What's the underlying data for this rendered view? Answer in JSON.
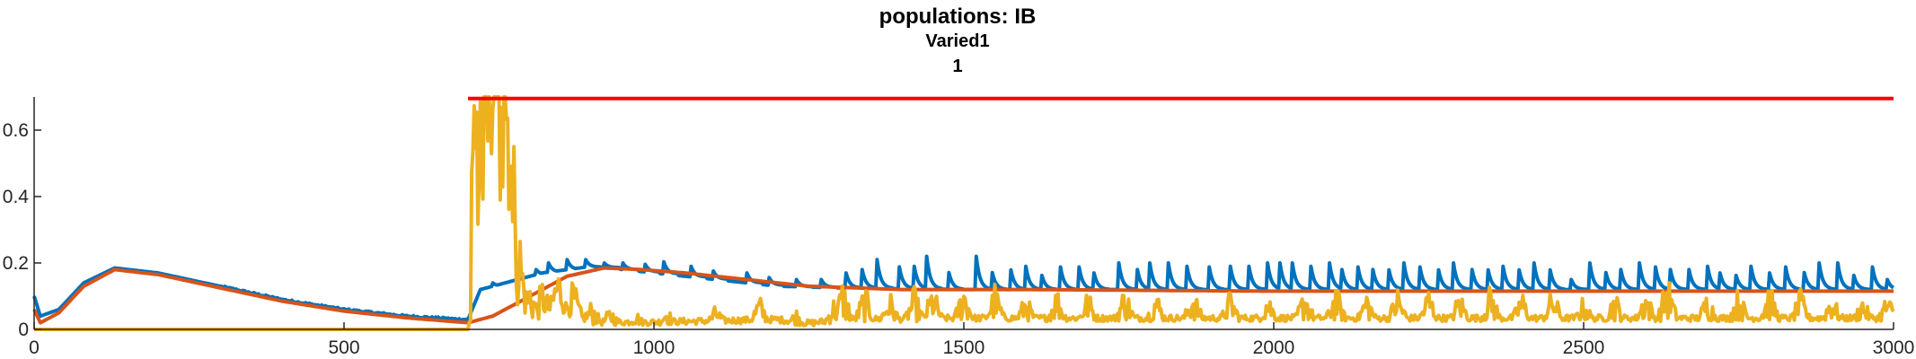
{
  "chart_data": {
    "type": "line",
    "title_lines": [
      "populations: IB",
      "Varied1",
      "1"
    ],
    "xlabel": "",
    "ylabel": "",
    "xlim": [
      0,
      3000
    ],
    "ylim": [
      0,
      0.7
    ],
    "x_ticks": [
      0,
      500,
      1000,
      1500,
      2000,
      2500,
      3000
    ],
    "x_tick_labels": [
      "0",
      "500",
      "1000",
      "1500",
      "2000",
      "2500",
      "3000"
    ],
    "y_ticks": [
      0,
      0.2,
      0.4,
      0.6
    ],
    "y_tick_labels": [
      "0",
      "0.2",
      "0.4",
      "0.6"
    ],
    "grid": false,
    "legend": "none",
    "series": [
      {
        "color": "#0072BD",
        "style": "spiky",
        "points": [
          [
            0,
            0.1
          ],
          [
            10,
            0.04
          ],
          [
            40,
            0.06
          ],
          [
            80,
            0.14
          ],
          [
            130,
            0.185
          ],
          [
            200,
            0.17
          ],
          [
            300,
            0.13
          ],
          [
            400,
            0.09
          ],
          [
            500,
            0.06
          ],
          [
            600,
            0.04
          ],
          [
            690,
            0.03
          ],
          [
            700,
            0.03
          ],
          [
            720,
            0.12
          ],
          [
            760,
            0.14
          ],
          [
            820,
            0.17
          ],
          [
            900,
            0.19
          ],
          [
            1000,
            0.17
          ],
          [
            1100,
            0.15
          ],
          [
            1200,
            0.13
          ],
          [
            1300,
            0.125
          ],
          [
            1500,
            0.12
          ],
          [
            2000,
            0.12
          ],
          [
            2500,
            0.12
          ],
          [
            3000,
            0.12
          ]
        ],
        "spikes": [
          [
            740,
            0.14
          ],
          [
            780,
            0.14
          ],
          [
            810,
            0.18
          ],
          [
            830,
            0.2
          ],
          [
            860,
            0.21
          ],
          [
            890,
            0.21
          ],
          [
            920,
            0.2
          ],
          [
            950,
            0.2
          ],
          [
            985,
            0.2
          ],
          [
            1015,
            0.21
          ],
          [
            1060,
            0.19
          ],
          [
            1095,
            0.18
          ],
          [
            1150,
            0.17
          ],
          [
            1185,
            0.16
          ],
          [
            1230,
            0.15
          ],
          [
            1270,
            0.15
          ],
          [
            1310,
            0.17
          ],
          [
            1335,
            0.19
          ],
          [
            1360,
            0.21
          ],
          [
            1395,
            0.2
          ],
          [
            1420,
            0.19
          ],
          [
            1440,
            0.22
          ],
          [
            1475,
            0.18
          ],
          [
            1520,
            0.22
          ],
          [
            1545,
            0.18
          ],
          [
            1575,
            0.19
          ],
          [
            1600,
            0.19
          ],
          [
            1625,
            0.17
          ],
          [
            1655,
            0.2
          ],
          [
            1685,
            0.2
          ],
          [
            1710,
            0.17
          ],
          [
            1750,
            0.2
          ],
          [
            1780,
            0.18
          ],
          [
            1800,
            0.2
          ],
          [
            1830,
            0.2
          ],
          [
            1860,
            0.19
          ],
          [
            1895,
            0.2
          ],
          [
            1930,
            0.19
          ],
          [
            1960,
            0.19
          ],
          [
            1990,
            0.2
          ],
          [
            2010,
            0.2
          ],
          [
            2030,
            0.2
          ],
          [
            2060,
            0.19
          ],
          [
            2090,
            0.2
          ],
          [
            2110,
            0.18
          ],
          [
            2135,
            0.2
          ],
          [
            2160,
            0.18
          ],
          [
            2185,
            0.19
          ],
          [
            2210,
            0.2
          ],
          [
            2235,
            0.2
          ],
          [
            2265,
            0.19
          ],
          [
            2290,
            0.2
          ],
          [
            2320,
            0.18
          ],
          [
            2345,
            0.19
          ],
          [
            2370,
            0.19
          ],
          [
            2395,
            0.19
          ],
          [
            2420,
            0.2
          ],
          [
            2445,
            0.19
          ],
          [
            2480,
            0.15
          ],
          [
            2510,
            0.2
          ],
          [
            2535,
            0.18
          ],
          [
            2560,
            0.18
          ],
          [
            2590,
            0.2
          ],
          [
            2615,
            0.2
          ],
          [
            2640,
            0.18
          ],
          [
            2670,
            0.18
          ],
          [
            2700,
            0.19
          ],
          [
            2720,
            0.17
          ],
          [
            2745,
            0.17
          ],
          [
            2770,
            0.19
          ],
          [
            2800,
            0.17
          ],
          [
            2825,
            0.2
          ],
          [
            2855,
            0.18
          ],
          [
            2880,
            0.2
          ],
          [
            2910,
            0.2
          ],
          [
            2935,
            0.17
          ],
          [
            2965,
            0.2
          ],
          [
            2990,
            0.15
          ]
        ]
      },
      {
        "color": "#D95319",
        "style": "smooth",
        "points": [
          [
            0,
            0.06
          ],
          [
            10,
            0.02
          ],
          [
            40,
            0.05
          ],
          [
            80,
            0.13
          ],
          [
            130,
            0.18
          ],
          [
            200,
            0.165
          ],
          [
            300,
            0.125
          ],
          [
            400,
            0.085
          ],
          [
            500,
            0.055
          ],
          [
            600,
            0.035
          ],
          [
            700,
            0.02
          ],
          [
            740,
            0.04
          ],
          [
            800,
            0.1
          ],
          [
            860,
            0.16
          ],
          [
            920,
            0.185
          ],
          [
            980,
            0.18
          ],
          [
            1050,
            0.17
          ],
          [
            1150,
            0.15
          ],
          [
            1250,
            0.13
          ],
          [
            1400,
            0.12
          ],
          [
            1600,
            0.12
          ],
          [
            2000,
            0.115
          ],
          [
            2400,
            0.115
          ],
          [
            2700,
            0.115
          ],
          [
            3000,
            0.115
          ]
        ]
      },
      {
        "color": "#EDB120",
        "style": "noisy",
        "points": [
          [
            0,
            0
          ],
          [
            700,
            0
          ],
          [
            705,
            0.05
          ],
          [
            715,
            0.45
          ],
          [
            730,
            0.6
          ],
          [
            745,
            0.7
          ],
          [
            760,
            0.6
          ],
          [
            770,
            0.35
          ],
          [
            780,
            0.15
          ],
          [
            800,
            0.05
          ],
          [
            850,
            0.12
          ],
          [
            900,
            0.03
          ],
          [
            1000,
            0.03
          ],
          [
            1200,
            0.05
          ],
          [
            1250,
            0.02
          ],
          [
            1300,
            0.05
          ],
          [
            1500,
            0.06
          ],
          [
            2000,
            0.06
          ],
          [
            2500,
            0.06
          ],
          [
            3000,
            0.06
          ]
        ],
        "bursts": [
          [
            730,
            0.7
          ],
          [
            745,
            0.7
          ],
          [
            760,
            0.68
          ],
          [
            780,
            0.35
          ],
          [
            800,
            0.15
          ],
          [
            820,
            0.13
          ],
          [
            845,
            0.16
          ],
          [
            870,
            0.12
          ],
          [
            900,
            0.08
          ],
          [
            930,
            0.06
          ],
          [
            970,
            0.05
          ],
          [
            1020,
            0.06
          ],
          [
            1100,
            0.06
          ],
          [
            1170,
            0.09
          ],
          [
            1230,
            0.05
          ],
          [
            1290,
            0.08
          ],
          [
            1305,
            0.14
          ],
          [
            1340,
            0.12
          ],
          [
            1380,
            0.1
          ],
          [
            1420,
            0.11
          ],
          [
            1450,
            0.12
          ],
          [
            1500,
            0.13
          ],
          [
            1550,
            0.12
          ],
          [
            1600,
            0.09
          ],
          [
            1650,
            0.11
          ],
          [
            1700,
            0.1
          ],
          [
            1760,
            0.12
          ],
          [
            1810,
            0.1
          ],
          [
            1870,
            0.11
          ],
          [
            1930,
            0.1
          ],
          [
            1990,
            0.1
          ],
          [
            2050,
            0.11
          ],
          [
            2100,
            0.12
          ],
          [
            2150,
            0.1
          ],
          [
            2200,
            0.11
          ],
          [
            2250,
            0.11
          ],
          [
            2300,
            0.1
          ],
          [
            2350,
            0.12
          ],
          [
            2400,
            0.1
          ],
          [
            2450,
            0.11
          ],
          [
            2500,
            0.08
          ],
          [
            2550,
            0.1
          ],
          [
            2600,
            0.11
          ],
          [
            2635,
            0.15
          ],
          [
            2700,
            0.1
          ],
          [
            2750,
            0.11
          ],
          [
            2800,
            0.12
          ],
          [
            2850,
            0.1
          ],
          [
            2900,
            0.1
          ],
          [
            2950,
            0.08
          ],
          [
            2990,
            0.09
          ]
        ]
      },
      {
        "color": "#FF0000",
        "style": "flat",
        "points": [
          [
            700,
            0.695
          ],
          [
            3000,
            0.695
          ]
        ]
      }
    ]
  }
}
